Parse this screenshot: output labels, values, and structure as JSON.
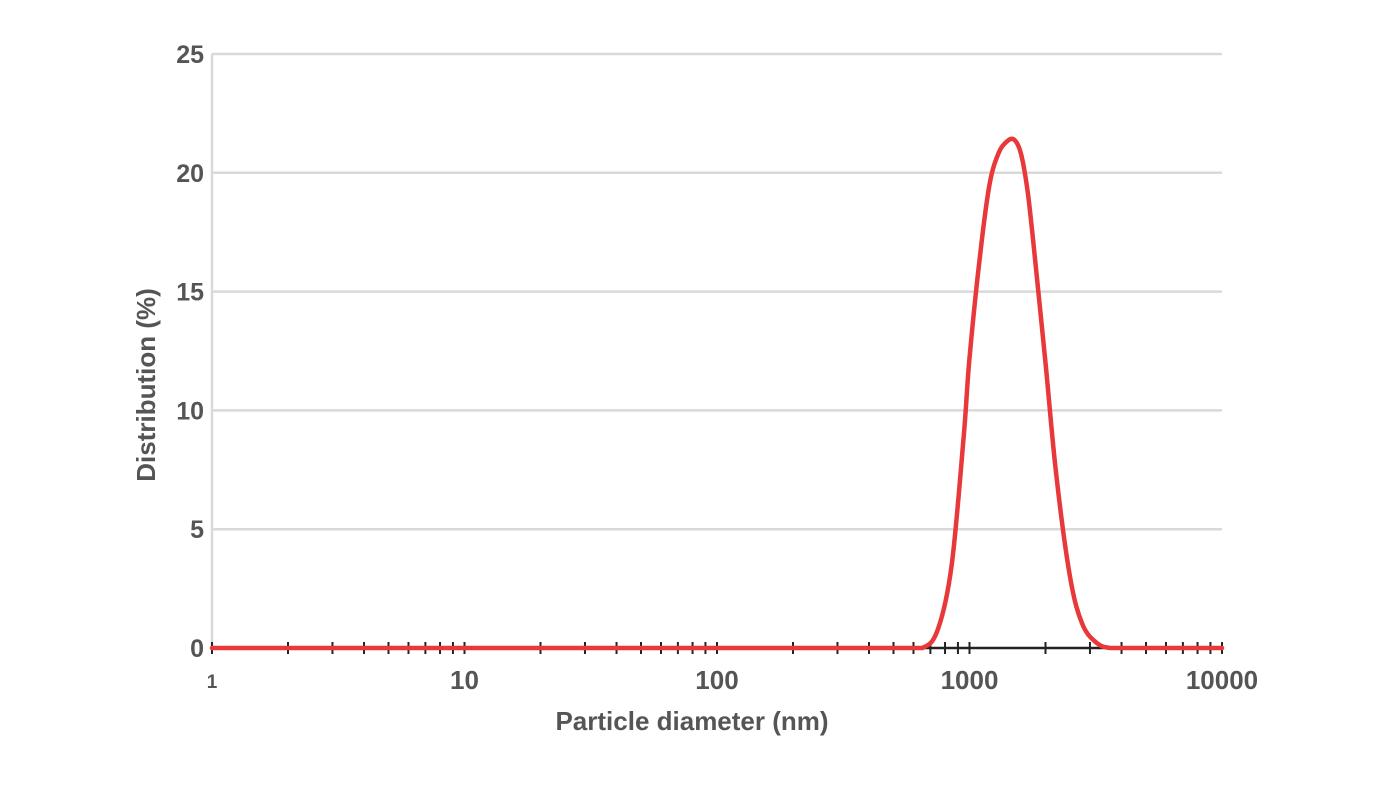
{
  "chart_data": {
    "type": "line",
    "xlabel": "Particle diameter (nm)",
    "ylabel": "Distribution (%)",
    "x_scale": "log",
    "xlim": [
      1,
      10000
    ],
    "ylim": [
      0,
      25
    ],
    "x_ticks": [
      "1",
      "10",
      "100",
      "1000",
      "10000"
    ],
    "y_ticks": [
      "0",
      "5",
      "10",
      "15",
      "20",
      "25"
    ],
    "grid": "horizontal",
    "colors": {
      "series": "#e8383a",
      "grid": "#d9d9d9",
      "baseline": "#222222",
      "text": "#555555"
    },
    "series": [
      {
        "x": [
          1,
          10,
          100,
          500,
          650,
          750,
          850,
          950,
          1000,
          1100,
          1200,
          1300,
          1400,
          1500,
          1600,
          1700,
          1800,
          2000,
          2200,
          2500,
          2800,
          3200,
          3600,
          4000,
          10000
        ],
        "values": [
          0,
          0,
          0,
          0,
          0,
          0.8,
          3.5,
          9.0,
          12.2,
          16.5,
          19.5,
          20.8,
          21.3,
          21.4,
          20.8,
          19.2,
          16.8,
          12.0,
          7.4,
          3.0,
          1.0,
          0.2,
          0,
          0,
          0
        ]
      }
    ]
  }
}
